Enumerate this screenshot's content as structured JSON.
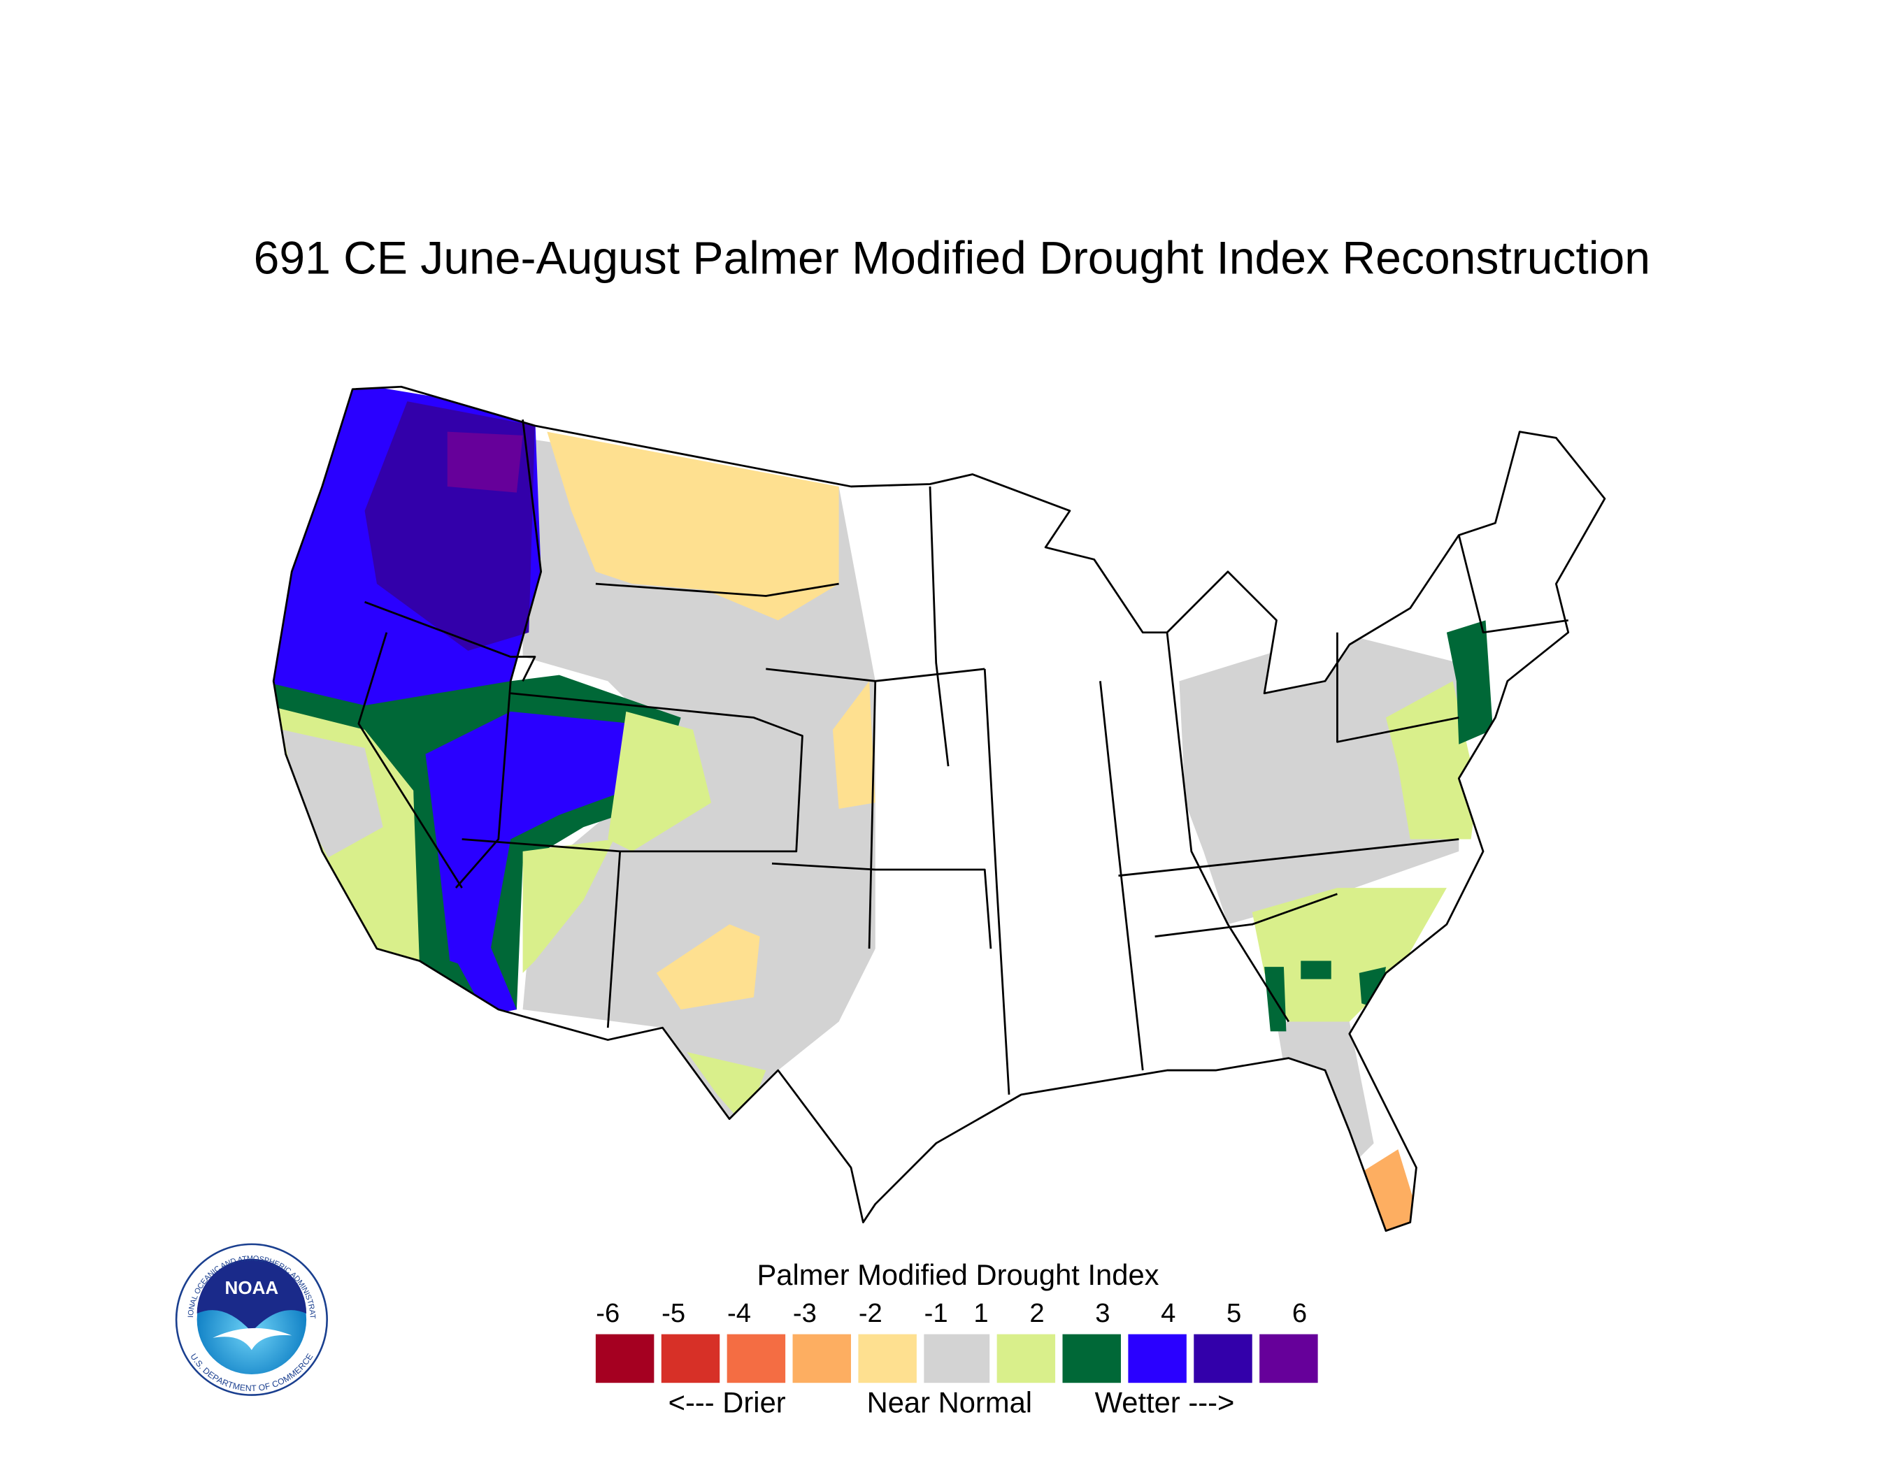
{
  "title": "691 CE  June-August  Palmer Modified Drought Index Reconstruction",
  "legend": {
    "title": "Palmer Modified Drought Index",
    "ticks": [
      -6,
      -5,
      -4,
      -3,
      -2,
      -1,
      1,
      2,
      3,
      4,
      5,
      6
    ],
    "colors": [
      "#a50021",
      "#d73027",
      "#f46d43",
      "#fdae61",
      "#fee090",
      "#d3d3d3",
      "#d9ef8b",
      "#006837",
      "#2a00ff",
      "#3300aa",
      "#66009a"
    ],
    "labels": [
      "<--- Drier",
      "Near Normal",
      "Wetter --->"
    ]
  },
  "logo": {
    "name": "NOAA",
    "top_text": "NATIONAL OCEANIC AND ATMOSPHERIC ADMINISTRATION",
    "bottom_text": "U.S. DEPARTMENT OF COMMERCE"
  }
}
